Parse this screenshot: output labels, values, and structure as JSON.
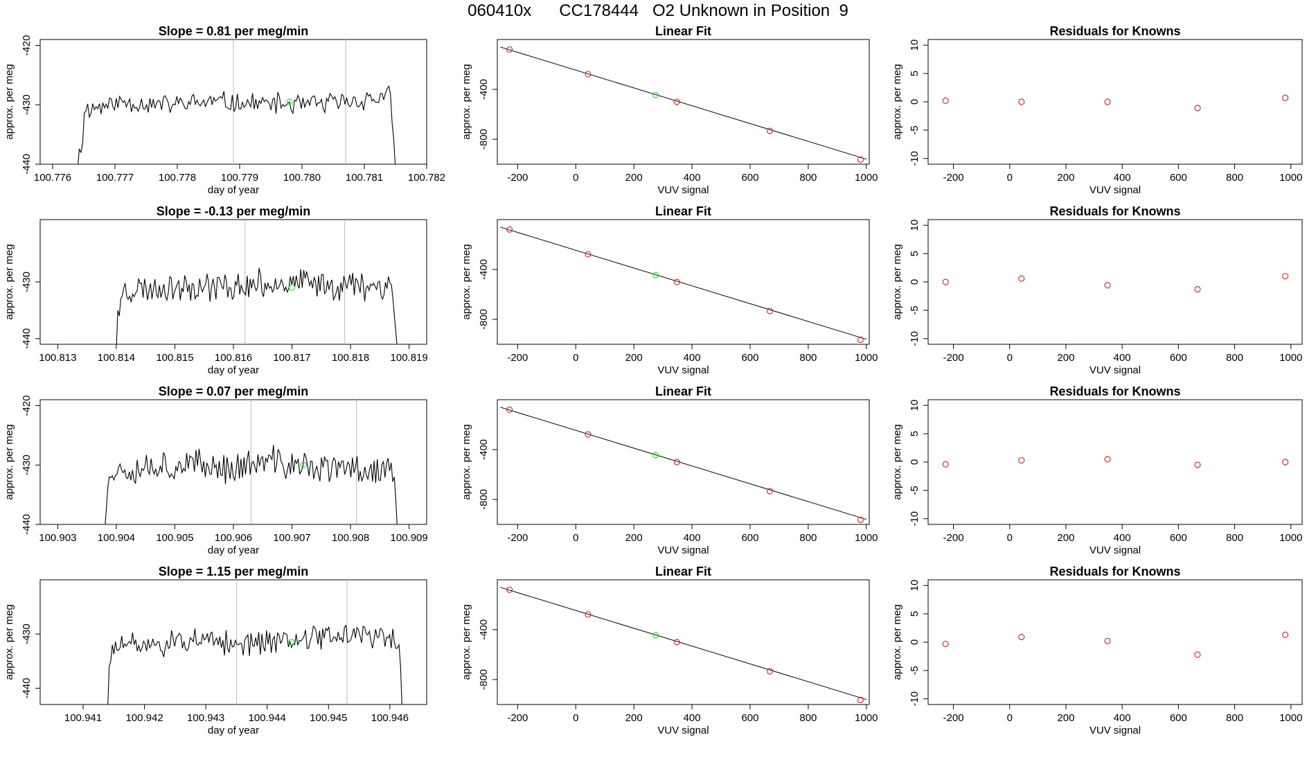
{
  "figure": {
    "title": "060410x      CC178444   O2 Unknown in Position  9",
    "colors": {
      "trace": "#000000",
      "known_points": "#cc3333",
      "unknown_point": "#33dd33",
      "fit_line": "#000000",
      "gridline": "#bbbbbb",
      "axis": "#000000"
    }
  },
  "chart_data": [
    {
      "type": "line",
      "title": "Slope =  0.81  per meg/min",
      "xlabel": "day of year",
      "ylabel": "approx. per meg",
      "xlim": [
        100.7758,
        100.782
      ],
      "ylim": [
        -440,
        -419
      ],
      "xticks": [
        "100.776",
        "100.777",
        "100.778",
        "100.779",
        "100.780",
        "100.781",
        "100.782"
      ],
      "yticks": [
        "-420",
        "-430",
        "-440"
      ],
      "vlines": [
        100.7789,
        100.7807
      ],
      "unknown_point": {
        "x": 100.7798,
        "y": -429.5
      },
      "trace": {
        "x_start": 100.7764,
        "x_end": 100.7815,
        "entry": [
          -441,
          -437.5,
          -438,
          -436.5
        ],
        "exit": [
          -433,
          -436,
          -441
        ],
        "mean": [
          -431.0,
          -429.5,
          -430.0,
          -429.5,
          -429.8,
          -430.0,
          -429.5,
          -428.5
        ],
        "amplitude": 1.5,
        "seed": 11
      }
    },
    {
      "type": "scatter",
      "title": "Linear Fit",
      "xlabel": "VUV signal",
      "ylabel": "approx. per meg",
      "xlim": [
        -270,
        1010
      ],
      "ylim": [
        -1000,
        0
      ],
      "xticks": [
        "-200",
        "0",
        "200",
        "400",
        "600",
        "800",
        "1000"
      ],
      "yticks": [
        "-400",
        "-800"
      ],
      "fit_line": {
        "x": [
          -260,
          1000
        ],
        "y": [
          -60,
          -960
        ]
      },
      "known_points": [
        {
          "x": -228,
          "y": -80
        },
        {
          "x": 42,
          "y": -278
        },
        {
          "x": 348,
          "y": -500
        },
        {
          "x": 668,
          "y": -733
        },
        {
          "x": 980,
          "y": -963
        }
      ],
      "unknown_point": {
        "x": 275,
        "y": -445
      }
    },
    {
      "type": "scatter",
      "title": "Residuals for Knowns",
      "xlabel": "VUV signal",
      "ylabel": "approx. per meg",
      "xlim": [
        -290,
        1040
      ],
      "ylim": [
        -11,
        11
      ],
      "xticks": [
        "-200",
        "0",
        "200",
        "400",
        "600",
        "800",
        "1000"
      ],
      "yticks": [
        "10",
        "5",
        "0",
        "-5",
        "-10"
      ],
      "known_points": [
        {
          "x": -228,
          "y": 0.2
        },
        {
          "x": 42,
          "y": 0.0
        },
        {
          "x": 348,
          "y": 0.0
        },
        {
          "x": 668,
          "y": -1.1
        },
        {
          "x": 980,
          "y": 0.7
        }
      ]
    },
    {
      "type": "line",
      "title": "Slope =  -0.13  per meg/min",
      "xlabel": "day of year",
      "ylabel": "approx. per meg",
      "xlim": [
        100.8127,
        100.8193
      ],
      "ylim": [
        -441,
        -419
      ],
      "xticks": [
        "100.813",
        "100.814",
        "100.815",
        "100.816",
        "100.817",
        "100.818",
        "100.819"
      ],
      "yticks": [
        "-430",
        "-440"
      ],
      "vlines": [
        100.8162,
        100.8179
      ],
      "unknown_point": {
        "x": 100.817,
        "y": -431
      },
      "trace": {
        "x_start": 100.814,
        "x_end": 100.8188,
        "entry": [
          -442,
          -435,
          -436,
          -433
        ],
        "exit": [
          -433,
          -436,
          -439,
          -442
        ],
        "mean": [
          -431.5,
          -431.0,
          -430.5,
          -431.0,
          -430.0,
          -430.5,
          -430.5,
          -430.5
        ],
        "amplitude": 2.2,
        "seed": 23
      }
    },
    {
      "type": "scatter",
      "title": "Linear Fit",
      "xlabel": "VUV signal",
      "ylabel": "approx. per meg",
      "xlim": [
        -270,
        1010
      ],
      "ylim": [
        -1000,
        0
      ],
      "xticks": [
        "-200",
        "0",
        "200",
        "400",
        "600",
        "800",
        "1000"
      ],
      "yticks": [
        "-400",
        "-800"
      ],
      "fit_line": {
        "x": [
          -260,
          1000
        ],
        "y": [
          -60,
          -960
        ]
      },
      "known_points": [
        {
          "x": -228,
          "y": -80
        },
        {
          "x": 42,
          "y": -278
        },
        {
          "x": 348,
          "y": -500
        },
        {
          "x": 668,
          "y": -733
        },
        {
          "x": 980,
          "y": -963
        }
      ],
      "unknown_point": {
        "x": 275,
        "y": -445
      }
    },
    {
      "type": "scatter",
      "title": "Residuals for Knowns",
      "xlabel": "VUV signal",
      "ylabel": "approx. per meg",
      "xlim": [
        -290,
        1040
      ],
      "ylim": [
        -11,
        11
      ],
      "xticks": [
        "-200",
        "0",
        "200",
        "400",
        "600",
        "800",
        "1000"
      ],
      "yticks": [
        "10",
        "5",
        "0",
        "-5",
        "-10"
      ],
      "known_points": [
        {
          "x": -228,
          "y": 0.0
        },
        {
          "x": 42,
          "y": 0.6
        },
        {
          "x": 348,
          "y": -0.6
        },
        {
          "x": 668,
          "y": -1.3
        },
        {
          "x": 980,
          "y": 1.0
        }
      ]
    },
    {
      "type": "line",
      "title": "Slope =  0.07  per meg/min",
      "xlabel": "day of year",
      "ylabel": "approx. per meg",
      "xlim": [
        100.9027,
        100.9093
      ],
      "ylim": [
        -440,
        -419
      ],
      "xticks": [
        "100.903",
        "100.904",
        "100.905",
        "100.906",
        "100.907",
        "100.908",
        "100.909"
      ],
      "yticks": [
        "-420",
        "-430",
        "-440"
      ],
      "vlines": [
        100.9063,
        100.9081
      ],
      "unknown_point": {
        "x": 100.9072,
        "y": -430
      },
      "trace": {
        "x_start": 100.9038,
        "x_end": 100.9088,
        "entry": [
          -441,
          -438,
          -434,
          -432
        ],
        "exit": [
          -432,
          -436,
          -441
        ],
        "mean": [
          -431.0,
          -430.0,
          -430.0,
          -430.5,
          -429.5,
          -430.5,
          -430.5,
          -431.0
        ],
        "amplitude": 2.3,
        "seed": 37
      }
    },
    {
      "type": "scatter",
      "title": "Linear Fit",
      "xlabel": "VUV signal",
      "ylabel": "approx. per meg",
      "xlim": [
        -270,
        1010
      ],
      "ylim": [
        -1000,
        0
      ],
      "xticks": [
        "-200",
        "0",
        "200",
        "400",
        "600",
        "800",
        "1000"
      ],
      "yticks": [
        "-400",
        "-800"
      ],
      "fit_line": {
        "x": [
          -260,
          1000
        ],
        "y": [
          -60,
          -960
        ]
      },
      "known_points": [
        {
          "x": -228,
          "y": -80
        },
        {
          "x": 42,
          "y": -278
        },
        {
          "x": 348,
          "y": -500
        },
        {
          "x": 668,
          "y": -733
        },
        {
          "x": 980,
          "y": -963
        }
      ],
      "unknown_point": {
        "x": 275,
        "y": -445
      }
    },
    {
      "type": "scatter",
      "title": "Residuals for Knowns",
      "xlabel": "VUV signal",
      "ylabel": "approx. per meg",
      "xlim": [
        -290,
        1040
      ],
      "ylim": [
        -11,
        11
      ],
      "xticks": [
        "-200",
        "0",
        "200",
        "400",
        "600",
        "800",
        "1000"
      ],
      "yticks": [
        "10",
        "5",
        "0",
        "-5",
        "-10"
      ],
      "known_points": [
        {
          "x": -228,
          "y": -0.4
        },
        {
          "x": 42,
          "y": 0.3
        },
        {
          "x": 348,
          "y": 0.5
        },
        {
          "x": 668,
          "y": -0.5
        },
        {
          "x": 980,
          "y": 0.0
        }
      ]
    },
    {
      "type": "line",
      "title": "Slope =  1.15  per meg/min",
      "xlabel": "day of year",
      "ylabel": "approx. per meg",
      "xlim": [
        100.9403,
        100.9466
      ],
      "ylim": [
        -443,
        -420
      ],
      "xticks": [
        "100.941",
        "100.942",
        "100.943",
        "100.944",
        "100.945",
        "100.946"
      ],
      "yticks": [
        "-430",
        "-440"
      ],
      "vlines": [
        100.9435,
        100.9453
      ],
      "unknown_point": {
        "x": 100.9444,
        "y": -431.5
      },
      "trace": {
        "x_start": 100.9414,
        "x_end": 100.9462,
        "entry": [
          -444,
          -436,
          -435,
          -432
        ],
        "exit": [
          -432,
          -436,
          -444
        ],
        "mean": [
          -432.5,
          -432.0,
          -431.5,
          -432.0,
          -431.0,
          -430.5,
          -430.0,
          -431.5
        ],
        "amplitude": 2.0,
        "seed": 51
      }
    },
    {
      "type": "scatter",
      "title": "Linear Fit",
      "xlabel": "VUV signal",
      "ylabel": "approx. per meg",
      "xlim": [
        -270,
        1010
      ],
      "ylim": [
        -1000,
        0
      ],
      "xticks": [
        "-200",
        "0",
        "200",
        "400",
        "600",
        "800",
        "1000"
      ],
      "yticks": [
        "-400",
        "-800"
      ],
      "fit_line": {
        "x": [
          -260,
          1000
        ],
        "y": [
          -60,
          -960
        ]
      },
      "known_points": [
        {
          "x": -228,
          "y": -80
        },
        {
          "x": 42,
          "y": -278
        },
        {
          "x": 348,
          "y": -500
        },
        {
          "x": 668,
          "y": -733
        },
        {
          "x": 980,
          "y": -963
        }
      ],
      "unknown_point": {
        "x": 275,
        "y": -445
      }
    },
    {
      "type": "scatter",
      "title": "Residuals for Knowns",
      "xlabel": "VUV signal",
      "ylabel": "approx. per meg",
      "xlim": [
        -290,
        1040
      ],
      "ylim": [
        -11,
        11
      ],
      "xticks": [
        "-200",
        "0",
        "200",
        "400",
        "600",
        "800",
        "1000"
      ],
      "yticks": [
        "10",
        "5",
        "0",
        "-5",
        "-10"
      ],
      "known_points": [
        {
          "x": -228,
          "y": -0.3
        },
        {
          "x": 42,
          "y": 0.9
        },
        {
          "x": 348,
          "y": 0.2
        },
        {
          "x": 668,
          "y": -2.2
        },
        {
          "x": 980,
          "y": 1.3
        }
      ]
    }
  ]
}
